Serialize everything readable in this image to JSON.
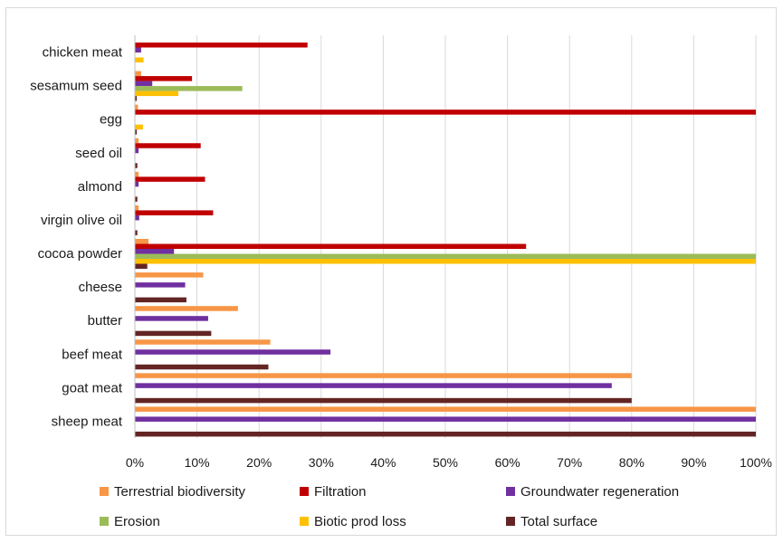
{
  "chart_data": {
    "type": "bar",
    "orientation": "horizontal",
    "title": "",
    "xlabel": "",
    "ylabel": "",
    "xlim": [
      0,
      1
    ],
    "grid": true,
    "legend_position": "bottom",
    "categories": [
      "chicken meat",
      "sesamum seed",
      "egg",
      "seed oil",
      "almond",
      "virgin olive oil",
      "cocoa powder",
      "cheese",
      "butter",
      "beef meat",
      "goat meat",
      "sheep meat"
    ],
    "x_ticks": [
      "0%",
      "10%",
      "20%",
      "30%",
      "40%",
      "50%",
      "60%",
      "70%",
      "80%",
      "90%",
      "100%"
    ],
    "series": [
      {
        "name": "Terrestrial biodiversity",
        "color": "#f79646",
        "values": [
          0.0,
          0.01,
          0.005,
          0.006,
          0.006,
          0.006,
          0.022,
          0.11,
          0.166,
          0.218,
          0.8,
          1.0
        ]
      },
      {
        "name": "Filtration",
        "color": "#c00000",
        "values": [
          0.278,
          0.092,
          1.0,
          0.106,
          0.113,
          0.126,
          0.63,
          0.0,
          0.0,
          0.0,
          0.0,
          0.0
        ]
      },
      {
        "name": "Groundwater regeneration",
        "color": "#7030a0",
        "values": [
          0.01,
          0.028,
          0.0,
          0.006,
          0.006,
          0.007,
          0.063,
          0.081,
          0.118,
          0.315,
          0.768,
          1.0
        ]
      },
      {
        "name": "Erosion",
        "color": "#9bbb59",
        "values": [
          0.0,
          0.173,
          0.0,
          0.0,
          0.0,
          0.0,
          1.0,
          0.0,
          0.0,
          0.0,
          0.0,
          0.0
        ]
      },
      {
        "name": "Biotic prod loss",
        "color": "#ffc000",
        "values": [
          0.014,
          0.07,
          0.013,
          0.0,
          0.0,
          0.0,
          1.0,
          0.0,
          0.0,
          0.0,
          0.0,
          0.0
        ]
      },
      {
        "name": "Total surface",
        "color": "#632523",
        "values": [
          0.0,
          0.003,
          0.003,
          0.004,
          0.004,
          0.004,
          0.02,
          0.083,
          0.123,
          0.215,
          0.8,
          1.0
        ]
      }
    ]
  }
}
